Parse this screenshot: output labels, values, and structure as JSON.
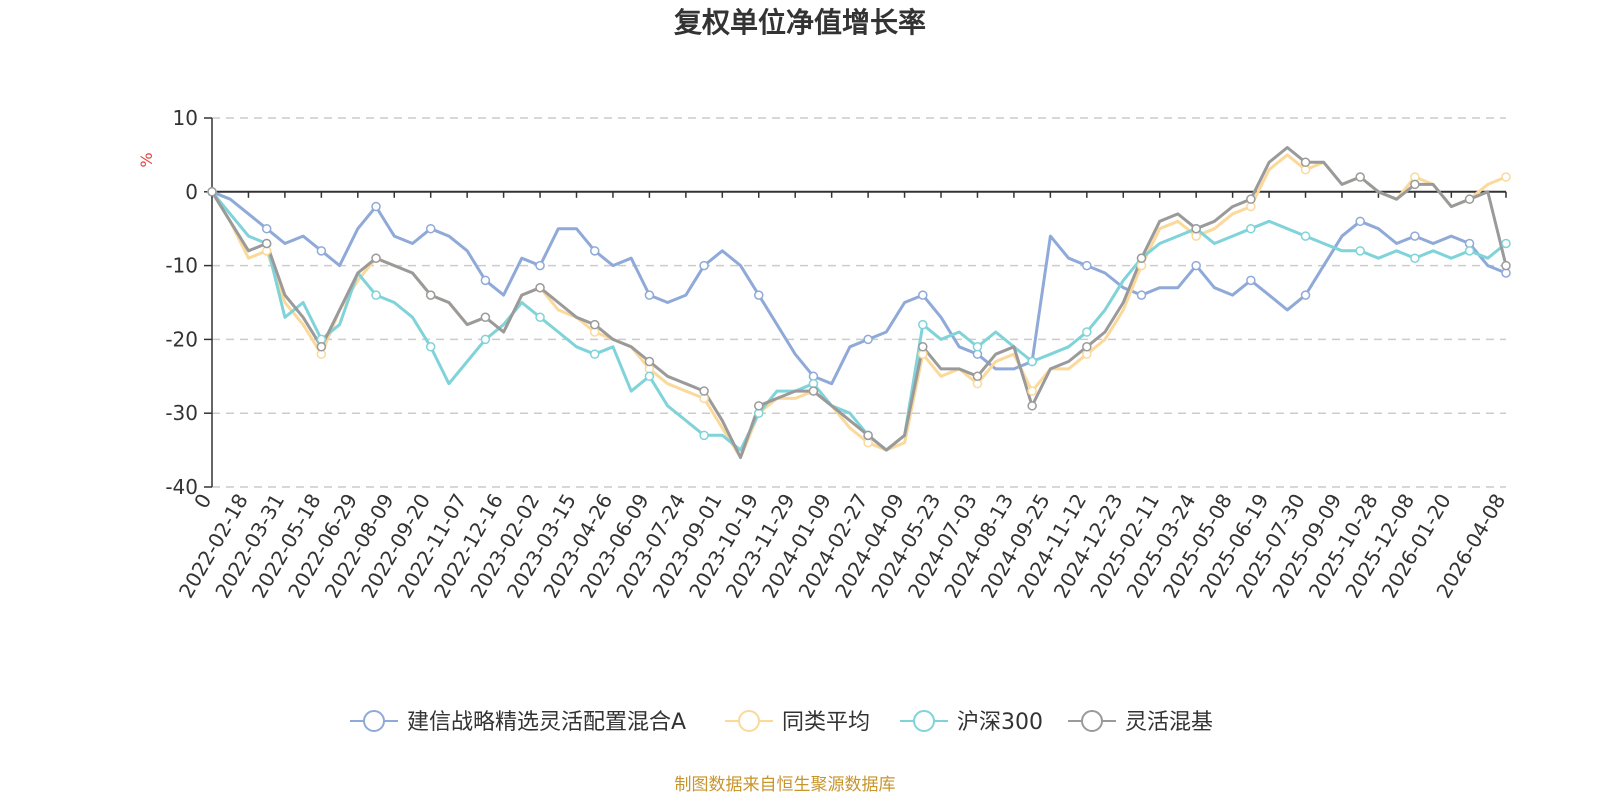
{
  "chart_data": {
    "type": "line",
    "title": "复权单位净值增长率",
    "ylabel": "%",
    "xlabel": "",
    "ylim": [
      -40,
      10
    ],
    "yticks": [
      10,
      0,
      -10,
      -20,
      -30,
      -40
    ],
    "grid": true,
    "legend_position": "bottom-center",
    "source": "制图数据来自恒生聚源数据库",
    "x_tick_labels": [
      "0",
      "2022-02-18",
      "2022-03-31",
      "2022-05-18",
      "2022-06-29",
      "2022-08-09",
      "2022-09-20",
      "2022-11-07",
      "2022-12-16",
      "2023-02-02",
      "2023-03-15",
      "2023-04-26",
      "2023-06-09",
      "2023-07-24",
      "2023-09-01",
      "2023-10-19",
      "2023-11-29",
      "2024-01-09",
      "2024-02-27",
      "2024-04-09",
      "2024-05-23",
      "2024-07-03",
      "2024-08-13",
      "2024-09-25",
      "2024-11-12",
      "2024-12-23",
      "2025-02-11",
      "2025-03-24",
      "2025-05-08",
      "2025-06-19",
      "2025-07-30",
      "2025-09-09",
      "2025-10-28",
      "2025-12-08",
      "2026-01-20",
      "2026-04-08"
    ],
    "x_tick_index": [
      0,
      2,
      4,
      6,
      8,
      10,
      12,
      14,
      16,
      18,
      20,
      22,
      24,
      26,
      28,
      30,
      32,
      34,
      36,
      38,
      40,
      42,
      44,
      46,
      48,
      50,
      52,
      54,
      56,
      58,
      60,
      62,
      64,
      66,
      68,
      71
    ],
    "x_count": 72,
    "series": [
      {
        "name": "建信战略精选灵活配置混合A",
        "color": "#8fa9d8",
        "values": [
          0,
          -1,
          -3,
          -5,
          -7,
          -6,
          -8,
          -10,
          -5,
          -2,
          -6,
          -7,
          -5,
          -6,
          -8,
          -12,
          -14,
          -9,
          -10,
          -5,
          -5,
          -8,
          -10,
          -9,
          -14,
          -15,
          -14,
          -10,
          -8,
          -10,
          -14,
          -18,
          -22,
          -25,
          -26,
          -21,
          -20,
          -19,
          -15,
          -14,
          -17,
          -21,
          -22,
          -24,
          -24,
          -23,
          -6,
          -9,
          -10,
          -11,
          -13,
          -14,
          -13,
          -13,
          -10,
          -13,
          -14,
          -12,
          -14,
          -16,
          -14,
          -10,
          -6,
          -4,
          -5,
          -7,
          -6,
          -7,
          -6,
          -7,
          -10,
          -11
        ]
      },
      {
        "name": "同类平均",
        "color": "#fbd99a",
        "values": [
          0,
          -4,
          -9,
          -8,
          -15,
          -18,
          -22,
          -16,
          -12,
          -9,
          -10,
          -11,
          -14,
          -15,
          -18,
          -17,
          -19,
          -14,
          -13,
          -16,
          -17,
          -19,
          -20,
          -21,
          -24,
          -26,
          -27,
          -28,
          -32,
          -36,
          -30,
          -28,
          -28,
          -27,
          -29,
          -32,
          -34,
          -35,
          -34,
          -22,
          -25,
          -24,
          -26,
          -23,
          -22,
          -27,
          -24,
          -24,
          -22,
          -20,
          -16,
          -10,
          -5,
          -4,
          -6,
          -5,
          -3,
          -2,
          3,
          5,
          3,
          4,
          1,
          2,
          0,
          -1,
          2,
          1,
          -2,
          -1,
          1,
          2
        ]
      },
      {
        "name": "沪深300",
        "color": "#7fd3d9",
        "values": [
          0,
          -3,
          -6,
          -7,
          -17,
          -15,
          -20,
          -18,
          -11,
          -14,
          -15,
          -17,
          -21,
          -26,
          -23,
          -20,
          -18,
          -15,
          -17,
          -19,
          -21,
          -22,
          -21,
          -27,
          -25,
          -29,
          -31,
          -33,
          -33,
          -35,
          -30,
          -27,
          -27,
          -26,
          -29,
          -30,
          -33,
          -35,
          -33,
          -18,
          -20,
          -19,
          -21,
          -19,
          -21,
          -23,
          -22,
          -21,
          -19,
          -16,
          -12,
          -9,
          -7,
          -6,
          -5,
          -7,
          -6,
          -5,
          -4,
          -5,
          -6,
          -7,
          -8,
          -8,
          -9,
          -8,
          -9,
          -8,
          -9,
          -8,
          -9,
          -7
        ]
      },
      {
        "name": "灵活混基",
        "color": "#9a9a9a",
        "values": [
          0,
          -4,
          -8,
          -7,
          -14,
          -17,
          -21,
          -16,
          -11,
          -9,
          -10,
          -11,
          -14,
          -15,
          -18,
          -17,
          -19,
          -14,
          -13,
          -15,
          -17,
          -18,
          -20,
          -21,
          -23,
          -25,
          -26,
          -27,
          -31,
          -36,
          -29,
          -28,
          -27,
          -27,
          -29,
          -31,
          -33,
          -35,
          -33,
          -21,
          -24,
          -24,
          -25,
          -22,
          -21,
          -29,
          -24,
          -23,
          -21,
          -19,
          -15,
          -9,
          -4,
          -3,
          -5,
          -4,
          -2,
          -1,
          4,
          6,
          4,
          4,
          1,
          2,
          0,
          -1,
          1,
          1,
          -2,
          -1,
          0,
          -10
        ]
      }
    ]
  }
}
